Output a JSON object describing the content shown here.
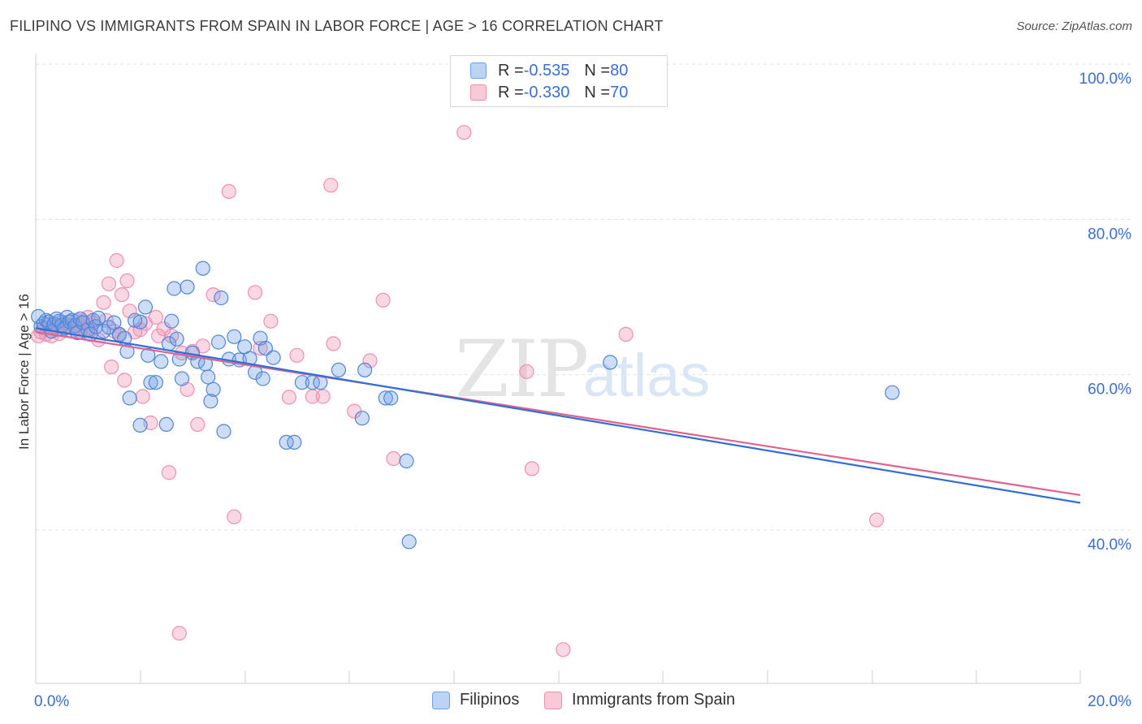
{
  "header": {
    "title": "FILIPINO VS IMMIGRANTS FROM SPAIN IN LABOR FORCE | AGE > 16 CORRELATION CHART",
    "source": "Source: ZipAtlas.com"
  },
  "legend": {
    "rows": [
      {
        "r_label": "R = ",
        "r_value": "-0.535",
        "n_label": "N = ",
        "n_value": "80"
      },
      {
        "r_label": "R = ",
        "r_value": "-0.330",
        "n_label": "N = ",
        "n_value": "70"
      }
    ]
  },
  "bottom_legend": {
    "items": [
      {
        "label": "Filipinos"
      },
      {
        "label": "Immigrants from Spain"
      }
    ]
  },
  "chart_data": {
    "type": "scatter",
    "title": "FILIPINO VS IMMIGRANTS FROM SPAIN IN LABOR FORCE | AGE > 16 CORRELATION CHART",
    "xlabel": "",
    "ylabel": "In Labor Force | Age > 16",
    "xlim": [
      0,
      20
    ],
    "ylim": [
      20,
      103
    ],
    "x_tick_labels": [
      "0.0%",
      "20.0%"
    ],
    "y_ticks": [
      40,
      60,
      80,
      100
    ],
    "y_tick_labels": [
      "40.0%",
      "60.0%",
      "80.0%",
      "100.0%"
    ],
    "grid": true,
    "legend_position": "top-center",
    "watermark": "ZIPatlas",
    "colors": {
      "filipinos": "#6f9fe6",
      "spain": "#ef8fae",
      "filipinos_line": "#2f6fd6",
      "spain_line": "#e0628f",
      "tick_text": "#3a6fd0"
    },
    "series": [
      {
        "name": "Filipinos",
        "trend": {
          "x": [
            0,
            20
          ],
          "y": [
            66.0,
            43.5
          ]
        },
        "points": [
          [
            0.1,
            66.2
          ],
          [
            0.15,
            66.6
          ],
          [
            0.2,
            67.0
          ],
          [
            0.25,
            66.8
          ],
          [
            0.3,
            65.6
          ],
          [
            0.35,
            66.5
          ],
          [
            0.4,
            67.2
          ],
          [
            0.45,
            66.9
          ],
          [
            0.5,
            66.4
          ],
          [
            0.55,
            66.0
          ],
          [
            0.6,
            67.4
          ],
          [
            0.65,
            66.8
          ],
          [
            0.7,
            67.0
          ],
          [
            0.75,
            66.3
          ],
          [
            0.8,
            65.4
          ],
          [
            0.85,
            67.2
          ],
          [
            0.9,
            66.7
          ],
          [
            1.0,
            65.8
          ],
          [
            1.05,
            65.2
          ],
          [
            1.1,
            67.0
          ],
          [
            1.15,
            66.2
          ],
          [
            1.2,
            67.3
          ],
          [
            1.3,
            65.6
          ],
          [
            1.4,
            66.1
          ],
          [
            1.5,
            66.7
          ],
          [
            1.6,
            65.2
          ],
          [
            1.7,
            64.7
          ],
          [
            1.75,
            63.0
          ],
          [
            1.8,
            57.0
          ],
          [
            1.9,
            67.0
          ],
          [
            2.0,
            53.5
          ],
          [
            2.0,
            66.8
          ],
          [
            2.1,
            68.7
          ],
          [
            2.15,
            62.5
          ],
          [
            2.2,
            59.0
          ],
          [
            2.3,
            59.0
          ],
          [
            2.4,
            61.7
          ],
          [
            2.5,
            53.6
          ],
          [
            2.55,
            64.0
          ],
          [
            2.6,
            66.9
          ],
          [
            2.65,
            71.1
          ],
          [
            2.7,
            64.6
          ],
          [
            2.75,
            62.0
          ],
          [
            2.8,
            59.5
          ],
          [
            2.9,
            71.3
          ],
          [
            3.0,
            62.8
          ],
          [
            3.1,
            61.7
          ],
          [
            3.2,
            73.7
          ],
          [
            3.25,
            61.4
          ],
          [
            3.3,
            59.7
          ],
          [
            3.35,
            56.6
          ],
          [
            3.4,
            58.1
          ],
          [
            3.5,
            64.2
          ],
          [
            3.55,
            69.9
          ],
          [
            3.6,
            52.7
          ],
          [
            3.7,
            62.0
          ],
          [
            3.8,
            64.9
          ],
          [
            3.9,
            61.9
          ],
          [
            4.0,
            63.6
          ],
          [
            4.1,
            62.1
          ],
          [
            4.2,
            60.3
          ],
          [
            4.3,
            64.7
          ],
          [
            4.35,
            59.5
          ],
          [
            4.4,
            63.4
          ],
          [
            4.55,
            62.2
          ],
          [
            4.8,
            51.3
          ],
          [
            4.95,
            51.3
          ],
          [
            5.1,
            59.0
          ],
          [
            5.3,
            59.0
          ],
          [
            5.45,
            59.0
          ],
          [
            5.8,
            60.6
          ],
          [
            6.25,
            54.4
          ],
          [
            6.3,
            60.6
          ],
          [
            6.7,
            57.0
          ],
          [
            6.8,
            57.0
          ],
          [
            7.1,
            48.9
          ],
          [
            7.15,
            38.5
          ],
          [
            11.0,
            61.6
          ],
          [
            16.4,
            57.7
          ],
          [
            0.05,
            67.5
          ]
        ]
      },
      {
        "name": "Immigrants from Spain",
        "trend": {
          "x": [
            0,
            20
          ],
          "y": [
            65.5,
            44.5
          ]
        },
        "points": [
          [
            0.1,
            65.5
          ],
          [
            0.15,
            66.0
          ],
          [
            0.2,
            65.2
          ],
          [
            0.25,
            66.5
          ],
          [
            0.3,
            65.0
          ],
          [
            0.35,
            66.2
          ],
          [
            0.4,
            65.8
          ],
          [
            0.45,
            65.3
          ],
          [
            0.5,
            66.8
          ],
          [
            0.6,
            66.4
          ],
          [
            0.7,
            65.6
          ],
          [
            0.75,
            66.0
          ],
          [
            0.8,
            67.0
          ],
          [
            0.85,
            65.5
          ],
          [
            0.9,
            66.9
          ],
          [
            0.95,
            65.8
          ],
          [
            1.0,
            67.4
          ],
          [
            1.05,
            65.7
          ],
          [
            1.1,
            66.7
          ],
          [
            1.2,
            64.5
          ],
          [
            1.3,
            69.3
          ],
          [
            1.35,
            67.0
          ],
          [
            1.4,
            71.7
          ],
          [
            1.45,
            61.0
          ],
          [
            1.5,
            65.6
          ],
          [
            1.55,
            74.7
          ],
          [
            1.6,
            65.1
          ],
          [
            1.65,
            70.3
          ],
          [
            1.7,
            59.3
          ],
          [
            1.75,
            72.1
          ],
          [
            1.8,
            68.2
          ],
          [
            1.9,
            65.5
          ],
          [
            2.0,
            65.8
          ],
          [
            2.05,
            57.2
          ],
          [
            2.1,
            66.6
          ],
          [
            2.2,
            53.8
          ],
          [
            2.3,
            67.4
          ],
          [
            2.35,
            65.0
          ],
          [
            2.45,
            65.9
          ],
          [
            2.55,
            47.4
          ],
          [
            2.6,
            65.0
          ],
          [
            2.75,
            26.7
          ],
          [
            2.8,
            62.8
          ],
          [
            2.9,
            58.1
          ],
          [
            3.0,
            63.0
          ],
          [
            3.1,
            53.6
          ],
          [
            3.2,
            63.7
          ],
          [
            3.4,
            70.3
          ],
          [
            3.7,
            83.6
          ],
          [
            3.8,
            41.7
          ],
          [
            4.2,
            70.6
          ],
          [
            4.3,
            63.4
          ],
          [
            4.5,
            66.9
          ],
          [
            4.85,
            57.1
          ],
          [
            5.0,
            62.5
          ],
          [
            5.3,
            57.2
          ],
          [
            5.5,
            57.2
          ],
          [
            5.65,
            84.4
          ],
          [
            5.7,
            64.0
          ],
          [
            6.1,
            55.3
          ],
          [
            6.4,
            61.8
          ],
          [
            6.65,
            69.6
          ],
          [
            6.85,
            49.2
          ],
          [
            8.2,
            91.2
          ],
          [
            9.4,
            60.4
          ],
          [
            9.5,
            47.9
          ],
          [
            10.1,
            24.6
          ],
          [
            11.3,
            65.2
          ],
          [
            16.1,
            41.3
          ],
          [
            0.05,
            65.0
          ]
        ]
      }
    ]
  }
}
